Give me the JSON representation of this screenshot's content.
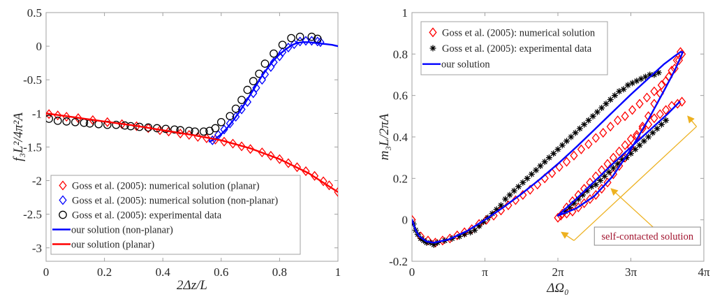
{
  "chart_data": [
    {
      "type": "line",
      "xlabel": "2Δz/L",
      "ylabel": "f₃L²/4π²A",
      "xlim": [
        0,
        1
      ],
      "ylim": [
        -3.2,
        0.5
      ],
      "xticks": [
        0,
        0.2,
        0.4,
        0.6,
        0.8,
        1
      ],
      "xtick_labels": [
        "0",
        "0.2",
        "0.4",
        "0.6",
        "0.8",
        "1"
      ],
      "yticks": [
        0.5,
        0,
        -0.5,
        -1,
        -1.5,
        -2,
        -2.5,
        -3
      ],
      "ytick_labels": [
        "0.5",
        "0",
        "-0.5",
        "-1",
        "-1.5",
        "-2",
        "-2.5",
        "-3"
      ],
      "grid": false,
      "legend_position": "bottom-left",
      "series": [
        {
          "name": "Goss et al. (2005): numerical solution (planar)",
          "kind": "marker",
          "marker": "diamond",
          "color": "#ff0000",
          "x": [
            0.01,
            0.04,
            0.07,
            0.11,
            0.16,
            0.21,
            0.26,
            0.31,
            0.35,
            0.39,
            0.42,
            0.46,
            0.49,
            0.52,
            0.55,
            0.58,
            0.61,
            0.64,
            0.67,
            0.7,
            0.74,
            0.77,
            0.8,
            0.83,
            0.86,
            0.89,
            0.92,
            0.95,
            0.97,
            1.0
          ],
          "y": [
            -1.01,
            -1.03,
            -1.05,
            -1.07,
            -1.1,
            -1.13,
            -1.16,
            -1.19,
            -1.22,
            -1.25,
            -1.27,
            -1.3,
            -1.32,
            -1.35,
            -1.37,
            -1.39,
            -1.42,
            -1.45,
            -1.49,
            -1.53,
            -1.58,
            -1.63,
            -1.68,
            -1.74,
            -1.8,
            -1.86,
            -1.93,
            -2.01,
            -2.07,
            -2.17
          ]
        },
        {
          "name": "Goss et al. (2005): numerical solution (non-planar)",
          "kind": "marker",
          "marker": "diamond",
          "color": "#0000ff",
          "x": [
            0.57,
            0.59,
            0.61,
            0.63,
            0.65,
            0.67,
            0.69,
            0.71,
            0.72,
            0.74,
            0.75,
            0.77,
            0.78,
            0.8,
            0.81,
            0.83,
            0.85,
            0.87,
            0.89,
            0.91,
            0.93,
            0.94
          ],
          "y": [
            -1.4,
            -1.32,
            -1.24,
            -1.15,
            -1.05,
            -0.94,
            -0.83,
            -0.7,
            -0.62,
            -0.5,
            -0.42,
            -0.31,
            -0.24,
            -0.15,
            -0.09,
            -0.02,
            0.03,
            0.07,
            0.08,
            0.08,
            0.07,
            0.06
          ]
        },
        {
          "name": "Goss et al. (2005): experimental data",
          "kind": "marker",
          "marker": "circle",
          "color": "#000000",
          "x": [
            0.01,
            0.04,
            0.07,
            0.1,
            0.13,
            0.15,
            0.18,
            0.21,
            0.24,
            0.27,
            0.29,
            0.32,
            0.35,
            0.38,
            0.41,
            0.44,
            0.46,
            0.49,
            0.51,
            0.54,
            0.56,
            0.58,
            0.6,
            0.63,
            0.65,
            0.67,
            0.69,
            0.71,
            0.73,
            0.75,
            0.78,
            0.81,
            0.84,
            0.87,
            0.91,
            0.93
          ],
          "y": [
            -1.08,
            -1.11,
            -1.12,
            -1.13,
            -1.14,
            -1.15,
            -1.16,
            -1.17,
            -1.17,
            -1.18,
            -1.19,
            -1.2,
            -1.21,
            -1.22,
            -1.23,
            -1.24,
            -1.25,
            -1.26,
            -1.27,
            -1.27,
            -1.26,
            -1.22,
            -1.13,
            -1.04,
            -0.93,
            -0.8,
            -0.65,
            -0.52,
            -0.41,
            -0.26,
            -0.11,
            0.02,
            0.12,
            0.14,
            0.14,
            0.11
          ]
        },
        {
          "name": "our solution (non-planar)",
          "kind": "line",
          "color": "#0000ff",
          "x": [
            0.56,
            0.58,
            0.6,
            0.62,
            0.64,
            0.66,
            0.68,
            0.7,
            0.72,
            0.74,
            0.76,
            0.78,
            0.8,
            0.82,
            0.84,
            0.86,
            0.88,
            0.9,
            0.92,
            0.94,
            0.96,
            0.98,
            1.0
          ],
          "y": [
            -1.42,
            -1.38,
            -1.31,
            -1.22,
            -1.11,
            -0.99,
            -0.86,
            -0.72,
            -0.58,
            -0.44,
            -0.32,
            -0.21,
            -0.12,
            -0.05,
            0.01,
            0.05,
            0.06,
            0.06,
            0.05,
            0.04,
            0.03,
            0.02,
            0.0
          ]
        },
        {
          "name": "our solution (planar)",
          "kind": "line",
          "color": "#ff0000",
          "x": [
            0.0,
            0.1,
            0.2,
            0.3,
            0.4,
            0.5,
            0.6,
            0.7,
            0.8,
            0.9,
            1.0
          ],
          "y": [
            -1.0,
            -1.06,
            -1.12,
            -1.18,
            -1.25,
            -1.32,
            -1.4,
            -1.52,
            -1.68,
            -1.89,
            -2.17
          ]
        }
      ]
    },
    {
      "type": "line",
      "xlabel": "ΔΩ₀",
      "ylabel": "m₃L/2πA",
      "x_units": "multiples of π",
      "xlim": [
        0,
        4
      ],
      "ylim": [
        -0.2,
        1
      ],
      "xticks": [
        0,
        1,
        2,
        3,
        4
      ],
      "xtick_labels": [
        "0",
        "π",
        "2π",
        "3π",
        "4π"
      ],
      "yticks": [
        1,
        0.8,
        0.6,
        0.4,
        0.2,
        0,
        -0.2
      ],
      "ytick_labels": [
        "1",
        "0.8",
        "0.6",
        "0.4",
        "0.2",
        "0",
        "-0.2"
      ],
      "grid": false,
      "legend_position": "top-left",
      "annotation": {
        "text": "self-contacted solution",
        "text_color": "#a2142f",
        "arrow_color": "#edb120",
        "points_to": "self-contacted lower branch, from 2π to ~3.7π"
      },
      "series": [
        {
          "name": "Goss et al. (2005): numerical solution",
          "kind": "marker",
          "marker": "diamond",
          "color": "#ff0000",
          "x": [
            0.0,
            0.12,
            0.22,
            0.32,
            0.42,
            0.52,
            0.62,
            0.72,
            0.82,
            0.92,
            1.02,
            1.12,
            1.22,
            1.32,
            1.42,
            1.52,
            1.62,
            1.72,
            1.82,
            1.92,
            2.02,
            2.12,
            2.22,
            2.32,
            2.42,
            2.52,
            2.62,
            2.72,
            2.82,
            2.92,
            3.02,
            3.12,
            3.22,
            3.32,
            3.42,
            3.52,
            3.6,
            3.66,
            3.7,
            3.68,
            3.63,
            3.56,
            3.48,
            3.4,
            3.32,
            3.24,
            3.16,
            3.08,
            3.0,
            2.92,
            2.84,
            2.76,
            2.68,
            2.6,
            2.52,
            2.44,
            2.36,
            2.28,
            2.2,
            2.12,
            2.04,
            2.0,
            2.06,
            2.12,
            2.2,
            2.28,
            2.36,
            2.44,
            2.52,
            2.6,
            2.68,
            2.76,
            2.84,
            2.92,
            3.0,
            3.08,
            3.16,
            3.24,
            3.32,
            3.4,
            3.48,
            3.56,
            3.64,
            3.7
          ],
          "y": [
            0.0,
            -0.08,
            -0.1,
            -0.11,
            -0.1,
            -0.09,
            -0.075,
            -0.06,
            -0.045,
            -0.02,
            0.0,
            0.02,
            0.045,
            0.07,
            0.095,
            0.12,
            0.145,
            0.17,
            0.2,
            0.225,
            0.255,
            0.28,
            0.31,
            0.34,
            0.365,
            0.395,
            0.42,
            0.45,
            0.48,
            0.5,
            0.53,
            0.56,
            0.59,
            0.62,
            0.65,
            0.69,
            0.73,
            0.77,
            0.8,
            0.81,
            0.77,
            0.72,
            0.67,
            0.61,
            0.56,
            0.5,
            0.45,
            0.4,
            0.35,
            0.3,
            0.26,
            0.22,
            0.18,
            0.15,
            0.12,
            0.1,
            0.08,
            0.06,
            0.04,
            0.03,
            0.02,
            0.01,
            0.03,
            0.06,
            0.09,
            0.12,
            0.15,
            0.18,
            0.21,
            0.24,
            0.27,
            0.3,
            0.33,
            0.36,
            0.39,
            0.41,
            0.44,
            0.46,
            0.49,
            0.51,
            0.53,
            0.55,
            0.56,
            0.57
          ]
        },
        {
          "name": "Goss et al. (2005): experimental data",
          "kind": "marker",
          "marker": "asterisk",
          "color": "#000000",
          "x": [
            0.02,
            0.05,
            0.08,
            0.12,
            0.16,
            0.2,
            0.25,
            0.3,
            0.35,
            0.45,
            0.55,
            0.65,
            0.72,
            0.8,
            0.86,
            0.92,
            0.98,
            1.04,
            1.1,
            1.16,
            1.22,
            1.28,
            1.34,
            1.4,
            1.46,
            1.52,
            1.58,
            1.64,
            1.7,
            1.76,
            1.82,
            1.88,
            1.94,
            2.0,
            2.06,
            2.12,
            2.18,
            2.24,
            2.3,
            2.36,
            2.42,
            2.48,
            2.54,
            2.6,
            2.66,
            2.72,
            2.78,
            2.84,
            2.9,
            2.96,
            3.02,
            3.08,
            3.14,
            3.2,
            3.26,
            3.32,
            3.38,
            2.1,
            2.16,
            2.22,
            2.28,
            2.34,
            2.4,
            2.46,
            2.52,
            2.58,
            2.64,
            2.7,
            2.76,
            2.82,
            2.88,
            2.94,
            3.0,
            3.06,
            3.12,
            3.18,
            3.24,
            3.3,
            3.36,
            3.42,
            3.48
          ],
          "y": [
            -0.02,
            -0.05,
            -0.07,
            -0.09,
            -0.1,
            -0.11,
            -0.11,
            -0.12,
            -0.11,
            -0.1,
            -0.09,
            -0.08,
            -0.07,
            -0.06,
            -0.05,
            -0.03,
            -0.01,
            0.01,
            0.03,
            0.05,
            0.07,
            0.1,
            0.12,
            0.14,
            0.16,
            0.18,
            0.2,
            0.22,
            0.24,
            0.26,
            0.28,
            0.3,
            0.32,
            0.34,
            0.36,
            0.38,
            0.4,
            0.42,
            0.44,
            0.46,
            0.48,
            0.5,
            0.52,
            0.54,
            0.56,
            0.58,
            0.6,
            0.62,
            0.63,
            0.65,
            0.66,
            0.67,
            0.68,
            0.69,
            0.7,
            0.7,
            0.71,
            0.04,
            0.06,
            0.08,
            0.1,
            0.12,
            0.14,
            0.16,
            0.17,
            0.19,
            0.21,
            0.23,
            0.25,
            0.27,
            0.29,
            0.3,
            0.32,
            0.34,
            0.36,
            0.38,
            0.4,
            0.42,
            0.44,
            0.46,
            0.48
          ]
        },
        {
          "name": "our solution",
          "kind": "line",
          "color": "#0000ff",
          "x": [
            0.0,
            0.05,
            0.1,
            0.2,
            0.3,
            0.5,
            0.75,
            1.0,
            1.25,
            1.5,
            1.75,
            2.0,
            2.25,
            2.5,
            2.75,
            3.0,
            3.25,
            3.45,
            3.6,
            3.68,
            3.71,
            3.69,
            3.6,
            3.45,
            3.25,
            3.0,
            2.75,
            2.5,
            2.25,
            2.0,
            2.25,
            2.5,
            2.75,
            3.0,
            3.25,
            3.5,
            3.67
          ],
          "y": [
            0.0,
            -0.05,
            -0.08,
            -0.105,
            -0.11,
            -0.095,
            -0.055,
            0.0,
            0.06,
            0.125,
            0.195,
            0.27,
            0.35,
            0.435,
            0.52,
            0.605,
            0.685,
            0.75,
            0.79,
            0.81,
            0.81,
            0.79,
            0.72,
            0.62,
            0.49,
            0.34,
            0.21,
            0.115,
            0.055,
            0.02,
            0.1,
            0.185,
            0.27,
            0.35,
            0.43,
            0.51,
            0.57
          ]
        }
      ]
    }
  ]
}
